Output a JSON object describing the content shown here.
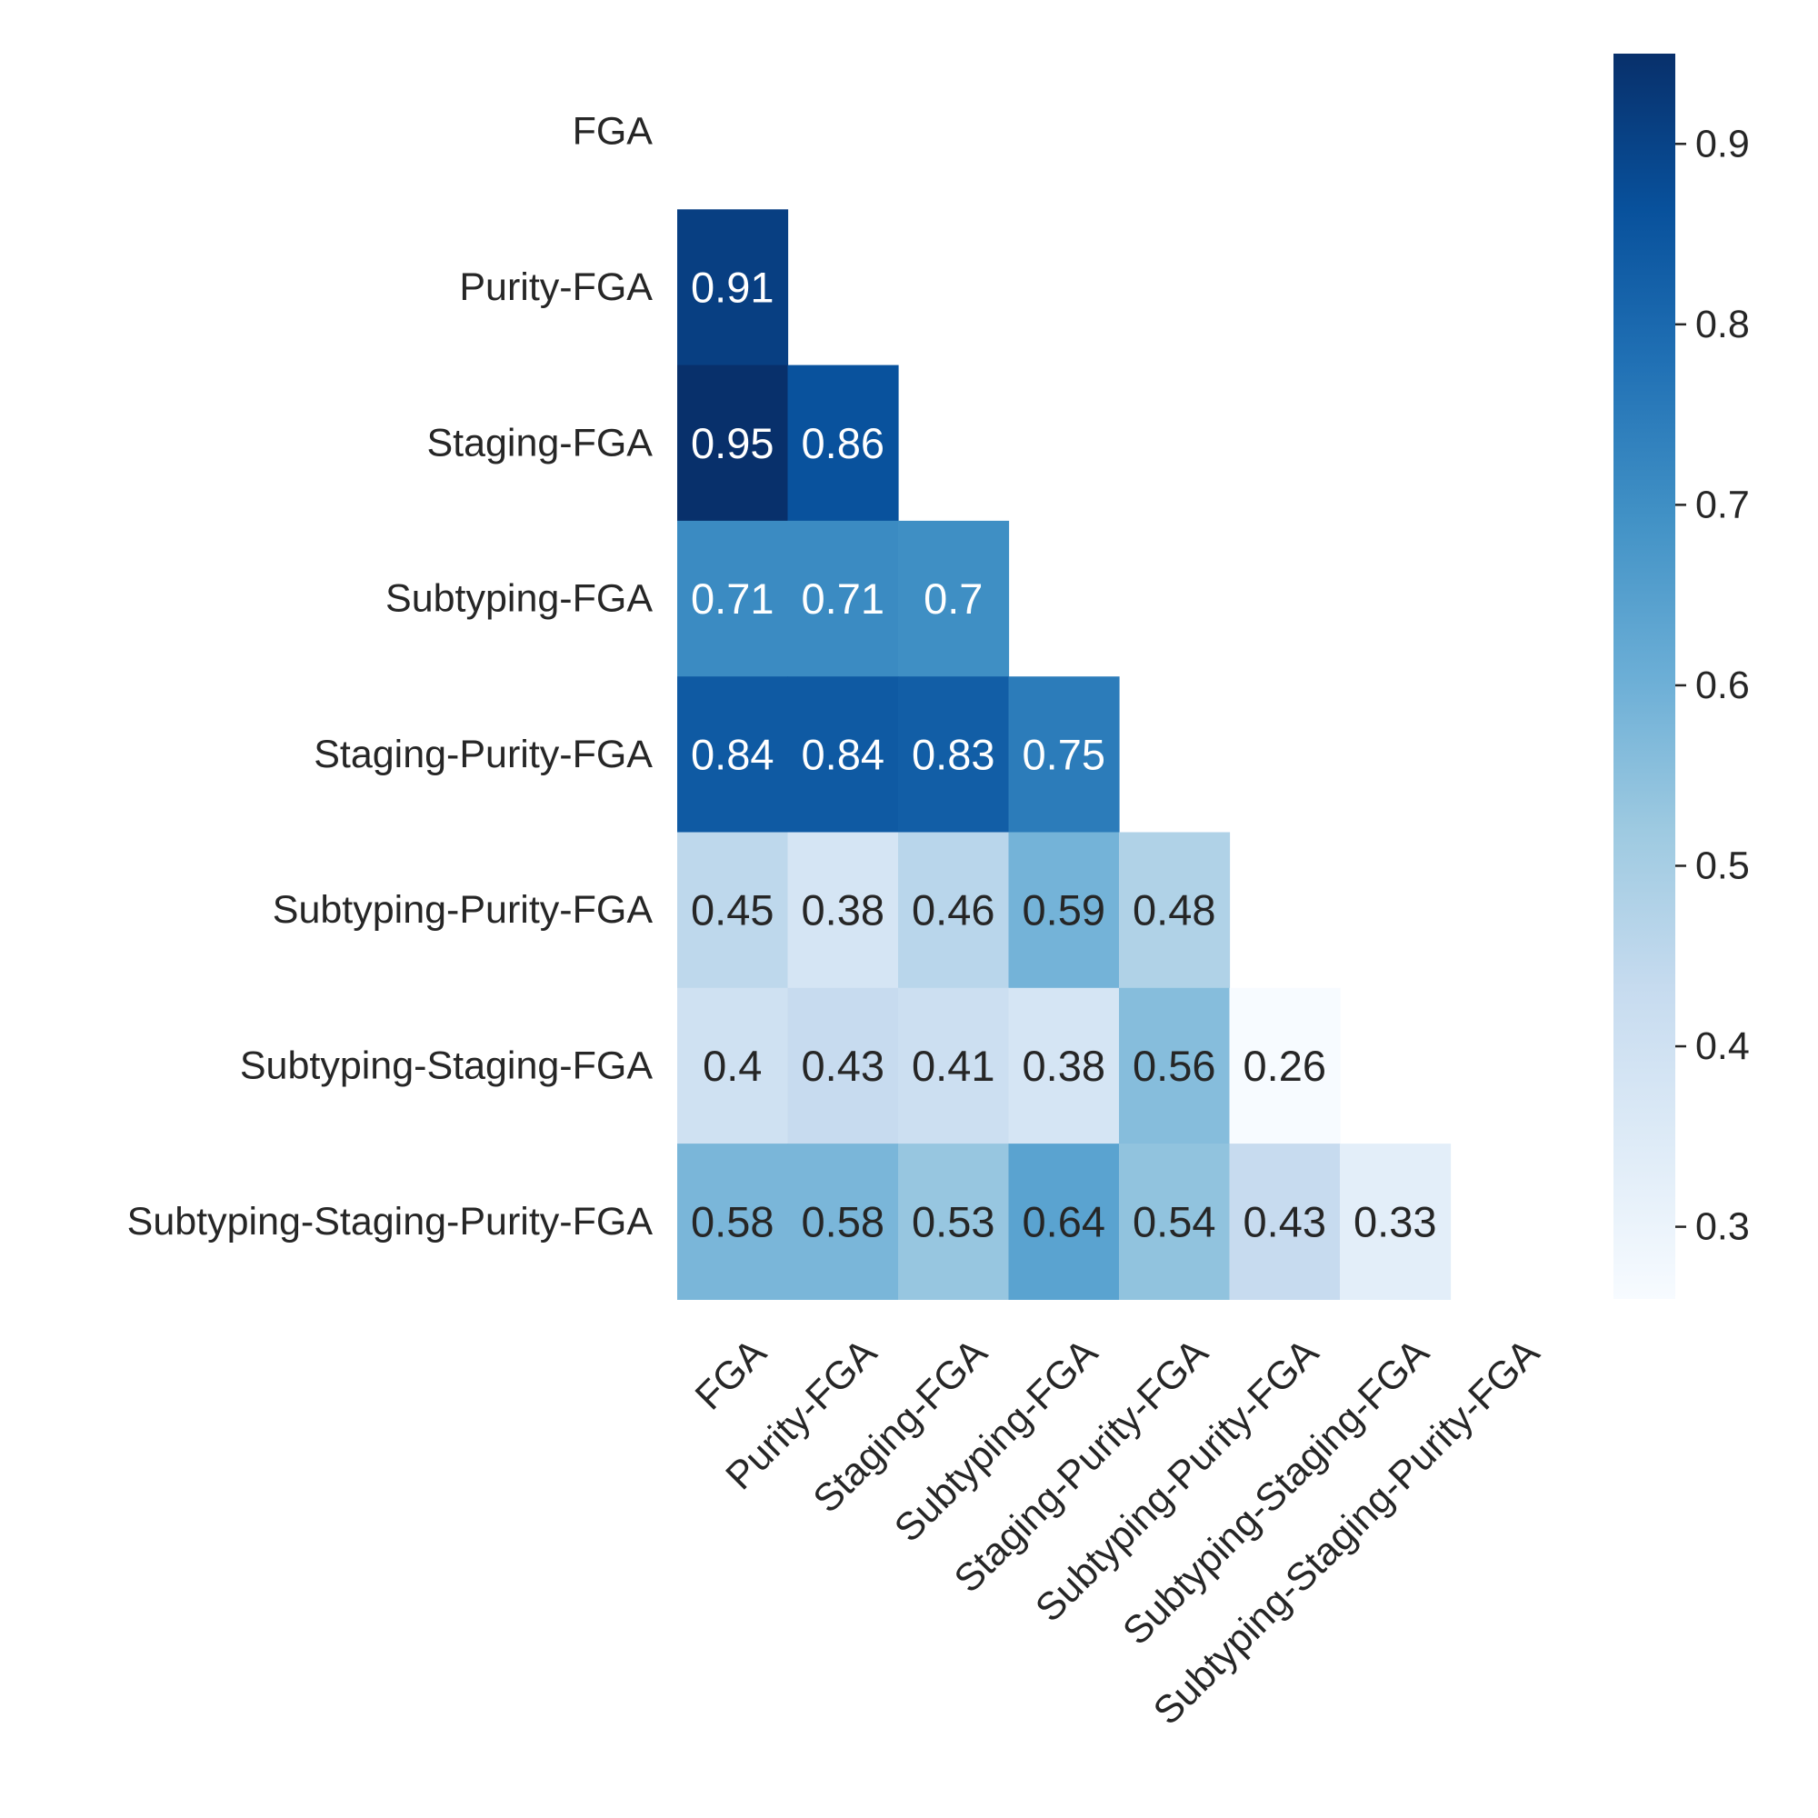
{
  "chart_data": {
    "type": "heatmap",
    "title": "",
    "xlabel": "",
    "ylabel": "",
    "rows": [
      "FGA",
      "Purity-FGA",
      "Staging-FGA",
      "Subtyping-FGA",
      "Staging-Purity-FGA",
      "Subtyping-Purity-FGA",
      "Subtyping-Staging-FGA",
      "Subtyping-Staging-Purity-FGA"
    ],
    "columns": [
      "FGA",
      "Purity-FGA",
      "Staging-FGA",
      "Subtyping-FGA",
      "Staging-Purity-FGA",
      "Subtyping-Purity-FGA",
      "Subtyping-Staging-FGA",
      "Subtyping-Staging-Purity-FGA"
    ],
    "mask": "upper-triangle-including-diagonal",
    "values": [
      [
        null,
        null,
        null,
        null,
        null,
        null,
        null,
        null
      ],
      [
        0.91,
        null,
        null,
        null,
        null,
        null,
        null,
        null
      ],
      [
        0.95,
        0.86,
        null,
        null,
        null,
        null,
        null,
        null
      ],
      [
        0.71,
        0.71,
        0.7,
        null,
        null,
        null,
        null,
        null
      ],
      [
        0.84,
        0.84,
        0.83,
        0.75,
        null,
        null,
        null,
        null
      ],
      [
        0.45,
        0.38,
        0.46,
        0.59,
        0.48,
        null,
        null,
        null
      ],
      [
        0.4,
        0.43,
        0.41,
        0.38,
        0.56,
        0.26,
        null,
        null
      ],
      [
        0.58,
        0.58,
        0.53,
        0.64,
        0.54,
        0.43,
        0.33,
        null
      ]
    ],
    "colormap": "Blues",
    "vmin": 0.26,
    "vmax": 0.95,
    "colorbar": {
      "ticks": [
        0.3,
        0.4,
        0.5,
        0.6,
        0.7,
        0.8,
        0.9
      ],
      "tick_labels": [
        "0.3",
        "0.4",
        "0.5",
        "0.6",
        "0.7",
        "0.8",
        "0.9"
      ],
      "position": "right"
    },
    "cell_annotations": true,
    "grid": false
  }
}
